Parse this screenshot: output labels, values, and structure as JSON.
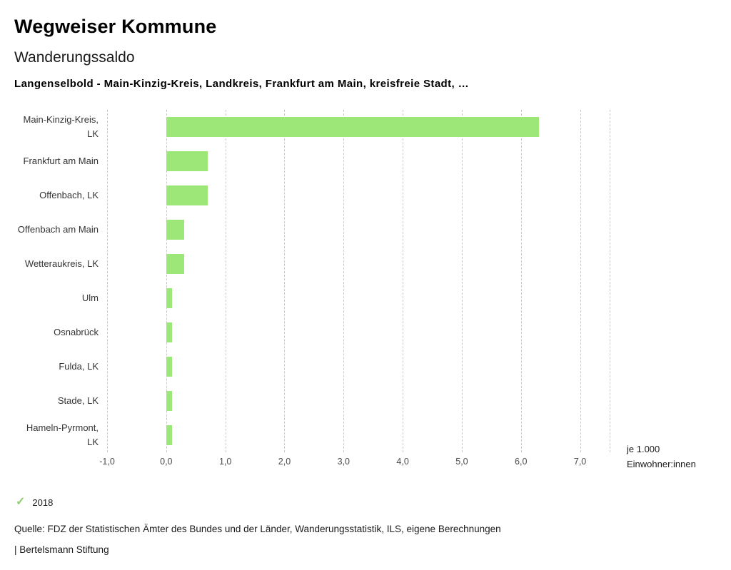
{
  "header": {
    "title": "Wegweiser Kommune",
    "subtitle": "Wanderungssaldo",
    "description": "Langenselbold - Main-Kinzig-Kreis, Landkreis, Frankfurt am Main, kreisfreie Stadt, …"
  },
  "chart_data": {
    "type": "bar",
    "orientation": "horizontal",
    "title": "Wanderungssaldo",
    "categories": [
      "Main-Kinzig-Kreis, LK",
      "Frankfurt am Main",
      "Offenbach, LK",
      "Offenbach am Main",
      "Wetteraukreis, LK",
      "Ulm",
      "Osnabrück",
      "Fulda, LK",
      "Stade, LK",
      "Hameln-Pyrmont, LK"
    ],
    "series": [
      {
        "name": "2018",
        "values": [
          6.3,
          0.7,
          0.7,
          0.3,
          0.3,
          0.1,
          0.1,
          0.1,
          0.1,
          0.1
        ]
      }
    ],
    "xlim": [
      -1.0,
      7.5
    ],
    "ticks": [
      -1.0,
      0.0,
      1.0,
      2.0,
      3.0,
      4.0,
      5.0,
      6.0,
      7.0
    ],
    "tick_labels": [
      "-1,0",
      "0,0",
      "1,0",
      "2,0",
      "3,0",
      "4,0",
      "5,0",
      "6,0",
      "7,0"
    ],
    "grid": "dashed-vertical",
    "legend_position": "bottom-left",
    "bar_color": "#9ce778",
    "xlabel": "",
    "ylabel": ""
  },
  "unit": {
    "line1": "je 1.000",
    "line2": "Einwohner:innen"
  },
  "legend": {
    "check_icon": "check-icon",
    "check_color": "#8fce6f",
    "year": "2018"
  },
  "footer": {
    "source": "Quelle: FDZ der Statistischen Ämter des Bundes und der Länder, Wanderungsstatistik, ILS, eigene Berechnungen",
    "branding": "| Bertelsmann Stiftung"
  }
}
